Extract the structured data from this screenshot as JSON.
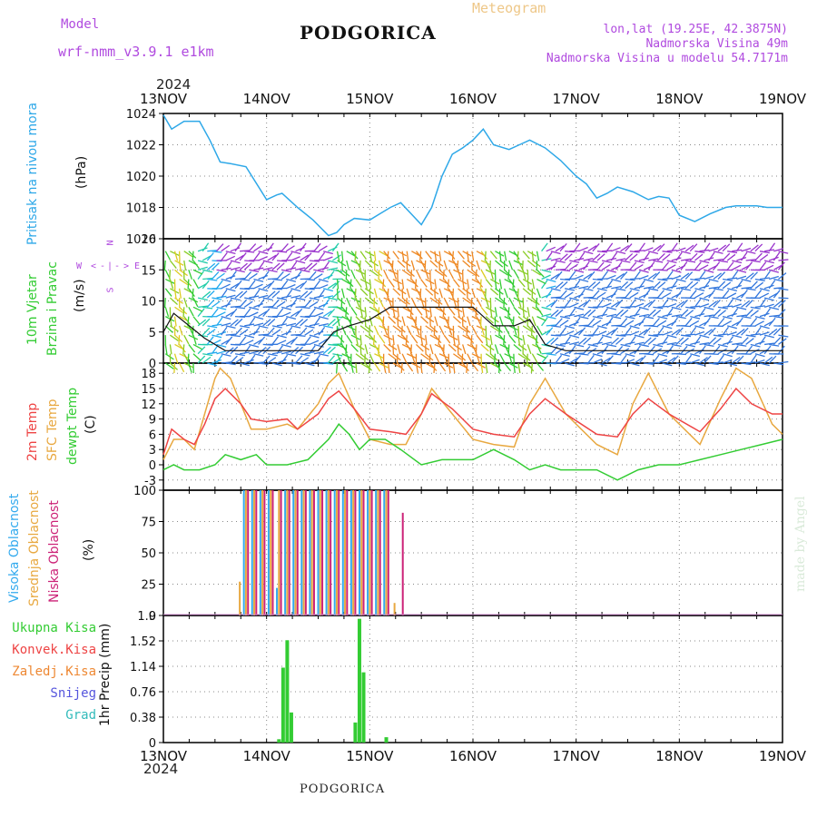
{
  "header": {
    "model_label": "Model",
    "model_name": "wrf-nmm_v3.9.1  e1km",
    "station": "PODGORICA",
    "product": "Meteogram",
    "lonlat": "lon,lat (19.25E, 42.3875N)",
    "elevation": "Nadmorska Visina 49m",
    "model_elevation": "Nadmorska Visina u modelu 54.7171m",
    "year_top": "2024",
    "year_bottom": "2024",
    "footer_station": "PODGORICA",
    "credit": "made by Angel"
  },
  "colors": {
    "pressure": "#2ea8e8",
    "t2m": "#ee4444",
    "sfc": "#e8a840",
    "dew": "#33cc33",
    "high_cloud": "#33aaee",
    "mid_cloud": "#e8a840",
    "low_cloud": "#cc2277",
    "precip_total": "#33cc33",
    "grid": "#888888"
  },
  "axis": {
    "dates": [
      "13NOV",
      "14NOV",
      "15NOV",
      "16NOV",
      "17NOV",
      "18NOV",
      "19NOV"
    ]
  },
  "panels": {
    "pressure": {
      "ylabel_1": "Pritisak na nivou mora",
      "ylabel_2": "(hPa)"
    },
    "wind": {
      "ylabel_1": "10m Vjetar",
      "ylabel_2": "Brzina i Pravac",
      "ylabel_3": "(m/s)",
      "compass_n": "N",
      "compass_w": "W",
      "compass_e": "E",
      "compass_s": "S"
    },
    "temp": {
      "ylabel_1": "2m Temp",
      "ylabel_2": "SFC Temp",
      "ylabel_3": "dewpt Temp",
      "ylabel_4": "(C)"
    },
    "cloud": {
      "ylabel_1": "Visoka Oblacnost",
      "ylabel_2": "Srednja Oblacnost",
      "ylabel_3": "Niska Oblacnost",
      "ylabel_4": "(%)"
    },
    "precip": {
      "ylabel": "1hr Precip (mm)",
      "legend": [
        "Ukupna Kisa",
        "Konvek.Kisa",
        "Zaledj.Kisa",
        "Snijeg",
        "Grad"
      ],
      "legend_colors": [
        "#33cc33",
        "#ee4444",
        "#ee8833",
        "#5555dd",
        "#33bbbb"
      ]
    }
  },
  "chart_data": [
    {
      "type": "line",
      "name": "pressure",
      "x_unit": "days since 13NOV 00UTC",
      "xlim": [
        0,
        6
      ],
      "ylim": [
        1016,
        1024
      ],
      "yticks": [
        1016,
        1018,
        1020,
        1022,
        1024
      ],
      "series": [
        {
          "name": "Pritisak na nivou mora",
          "x": [
            0,
            0.08,
            0.2,
            0.35,
            0.45,
            0.55,
            0.65,
            0.8,
            1.0,
            1.1,
            1.15,
            1.3,
            1.45,
            1.6,
            1.68,
            1.75,
            1.85,
            2.0,
            2.1,
            2.2,
            2.3,
            2.4,
            2.5,
            2.6,
            2.7,
            2.8,
            2.9,
            3.0,
            3.1,
            3.2,
            3.35,
            3.45,
            3.55,
            3.7,
            3.85,
            4.0,
            4.1,
            4.2,
            4.3,
            4.4,
            4.55,
            4.7,
            4.8,
            4.9,
            5.0,
            5.15,
            5.3,
            5.45,
            5.55,
            5.65,
            5.75,
            5.85,
            6.0
          ],
          "values": [
            1023.9,
            1023.0,
            1023.5,
            1023.5,
            1022.3,
            1020.9,
            1020.8,
            1020.6,
            1018.5,
            1018.8,
            1018.9,
            1018.0,
            1017.2,
            1016.2,
            1016.4,
            1016.9,
            1017.3,
            1017.2,
            1017.6,
            1018.0,
            1018.3,
            1017.6,
            1016.9,
            1018.0,
            1020.0,
            1021.4,
            1021.8,
            1022.3,
            1023.0,
            1022.0,
            1021.7,
            1022.0,
            1022.3,
            1021.8,
            1021.0,
            1020.0,
            1019.5,
            1018.6,
            1018.9,
            1019.3,
            1019.0,
            1018.5,
            1018.7,
            1018.6,
            1017.5,
            1017.1,
            1017.6,
            1018.0,
            1018.1,
            1018.1,
            1018.1,
            1018.0,
            1018.0
          ]
        }
      ]
    },
    {
      "type": "line",
      "name": "wind",
      "xlim": [
        0,
        6
      ],
      "ylim": [
        0,
        20
      ],
      "yticks": [
        0,
        5,
        10,
        15,
        20
      ],
      "series": [
        {
          "name": "speed",
          "x": [
            0,
            0.1,
            0.25,
            0.4,
            0.6,
            0.9,
            1.2,
            1.5,
            1.65,
            1.8,
            2.0,
            2.2,
            2.5,
            2.8,
            3.0,
            3.2,
            3.4,
            3.55,
            3.7,
            3.9,
            4.2,
            4.5,
            4.8,
            5.1,
            5.4,
            5.7,
            6.0
          ],
          "values": [
            5,
            8,
            6,
            4,
            2,
            2,
            2,
            2,
            5,
            6,
            7,
            9,
            9,
            9,
            9,
            6,
            6,
            7,
            3,
            2,
            2,
            2,
            2,
            2,
            2,
            2,
            2
          ]
        }
      ]
    },
    {
      "type": "line",
      "name": "temperature",
      "xlim": [
        0,
        6
      ],
      "ylim": [
        -5,
        20
      ],
      "yticks": [
        -3,
        0,
        3,
        6,
        9,
        12,
        15,
        18
      ],
      "series": [
        {
          "name": "2m Temp",
          "x": [
            0,
            0.08,
            0.2,
            0.3,
            0.4,
            0.5,
            0.6,
            0.75,
            0.85,
            1.0,
            1.2,
            1.3,
            1.5,
            1.6,
            1.7,
            1.85,
            2.0,
            2.2,
            2.35,
            2.5,
            2.6,
            2.8,
            3.0,
            3.2,
            3.4,
            3.55,
            3.7,
            3.9,
            4.2,
            4.4,
            4.55,
            4.7,
            4.9,
            5.2,
            5.4,
            5.55,
            5.7,
            5.9,
            6.0
          ],
          "values": [
            2,
            7,
            5,
            4,
            8,
            13,
            15,
            12,
            9,
            8.5,
            9,
            7,
            10,
            13,
            14.5,
            11,
            7,
            6.5,
            6,
            10,
            14,
            11,
            7,
            6,
            5.5,
            10,
            13,
            10,
            6,
            5.5,
            10,
            13,
            10,
            6.5,
            11,
            15,
            12,
            10,
            10
          ]
        },
        {
          "name": "SFC Temp",
          "x": [
            0,
            0.1,
            0.2,
            0.3,
            0.4,
            0.5,
            0.55,
            0.65,
            0.75,
            0.85,
            1.0,
            1.2,
            1.3,
            1.5,
            1.6,
            1.7,
            1.85,
            2.0,
            2.2,
            2.35,
            2.5,
            2.6,
            2.8,
            3.0,
            3.2,
            3.4,
            3.55,
            3.7,
            3.9,
            4.2,
            4.4,
            4.55,
            4.7,
            4.9,
            5.2,
            5.4,
            5.55,
            5.7,
            5.9,
            6.0
          ],
          "values": [
            1,
            5,
            5,
            3,
            10,
            17,
            19,
            17,
            12,
            7,
            7,
            8,
            7,
            12,
            16,
            18,
            11,
            5,
            4,
            4,
            10,
            15,
            10,
            5,
            4,
            3.5,
            12,
            17,
            10,
            4,
            2,
            12,
            18,
            10,
            4,
            13,
            19,
            17,
            8,
            6
          ]
        },
        {
          "name": "dewpt Temp",
          "x": [
            0,
            0.1,
            0.2,
            0.35,
            0.5,
            0.6,
            0.75,
            0.9,
            1.0,
            1.2,
            1.4,
            1.5,
            1.6,
            1.7,
            1.8,
            1.9,
            2.0,
            2.15,
            2.3,
            2.5,
            2.7,
            2.85,
            3.0,
            3.2,
            3.4,
            3.55,
            3.7,
            3.85,
            4.0,
            4.2,
            4.4,
            4.6,
            4.8,
            5.0,
            5.2,
            5.4,
            5.6,
            5.8,
            6.0
          ],
          "values": [
            -1,
            0,
            -1,
            -1,
            0,
            2,
            1,
            2,
            0,
            0,
            1,
            3,
            5,
            8,
            6,
            3,
            5,
            5,
            3,
            0,
            1,
            1,
            1,
            3,
            1,
            -1,
            0,
            -1,
            -1,
            -1,
            -3,
            -1,
            0,
            0,
            1,
            2,
            3,
            4,
            5
          ]
        }
      ]
    },
    {
      "type": "bar",
      "name": "cloud",
      "xlim": [
        0,
        6
      ],
      "ylim": [
        0,
        100
      ],
      "yticks": [
        0,
        25,
        50,
        75,
        100
      ],
      "series": [
        {
          "name": "Visoka Oblacnost",
          "x": [
            0.78,
            0.86,
            0.94,
            1.02,
            1.1,
            1.18,
            1.26,
            1.34,
            1.42,
            1.5,
            1.58,
            1.66,
            1.74,
            1.82,
            1.9,
            1.98,
            2.06,
            2.14
          ],
          "values": [
            100,
            100,
            100,
            100,
            22,
            100,
            100,
            100,
            100,
            100,
            100,
            100,
            100,
            100,
            100,
            100,
            100,
            100
          ]
        },
        {
          "name": "Srednja Oblacnost",
          "x": [
            0.74,
            0.8,
            0.88,
            0.96,
            1.04,
            1.12,
            1.2,
            1.28,
            1.36,
            1.44,
            1.52,
            1.6,
            1.68,
            1.76,
            1.84,
            1.92,
            2.0,
            2.08,
            2.16,
            2.24
          ],
          "values": [
            27,
            100,
            100,
            100,
            100,
            100,
            100,
            100,
            100,
            100,
            100,
            100,
            100,
            100,
            100,
            100,
            100,
            100,
            100,
            10
          ]
        },
        {
          "name": "Niska Oblacnost",
          "x": [
            0.82,
            0.9,
            0.98,
            1.06,
            1.14,
            1.22,
            1.3,
            1.38,
            1.46,
            1.54,
            1.62,
            1.7,
            1.78,
            1.86,
            1.94,
            2.02,
            2.1,
            2.18,
            2.32
          ],
          "values": [
            100,
            100,
            100,
            100,
            100,
            100,
            100,
            100,
            100,
            100,
            100,
            100,
            100,
            100,
            100,
            100,
            100,
            100,
            82
          ]
        }
      ]
    },
    {
      "type": "bar",
      "name": "precip",
      "xlim": [
        0,
        6
      ],
      "ylim": [
        0,
        1.9
      ],
      "yticks": [
        0,
        0.38,
        0.76,
        1.14,
        1.52,
        1.9
      ],
      "series": [
        {
          "name": "Ukupna Kisa",
          "x": [
            1.12,
            1.16,
            1.2,
            1.24,
            1.86,
            1.9,
            1.94,
            2.16
          ],
          "values": [
            0.05,
            1.12,
            1.53,
            0.45,
            0.3,
            1.85,
            1.05,
            0.08
          ]
        }
      ]
    }
  ]
}
